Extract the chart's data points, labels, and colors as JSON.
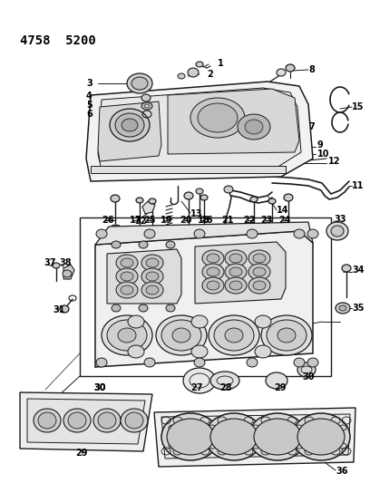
{
  "title": "4758  5200",
  "background_color": "#ffffff",
  "line_color": "#000000",
  "text_color": "#000000",
  "figsize": [
    4.08,
    5.33
  ],
  "dpi": 100
}
